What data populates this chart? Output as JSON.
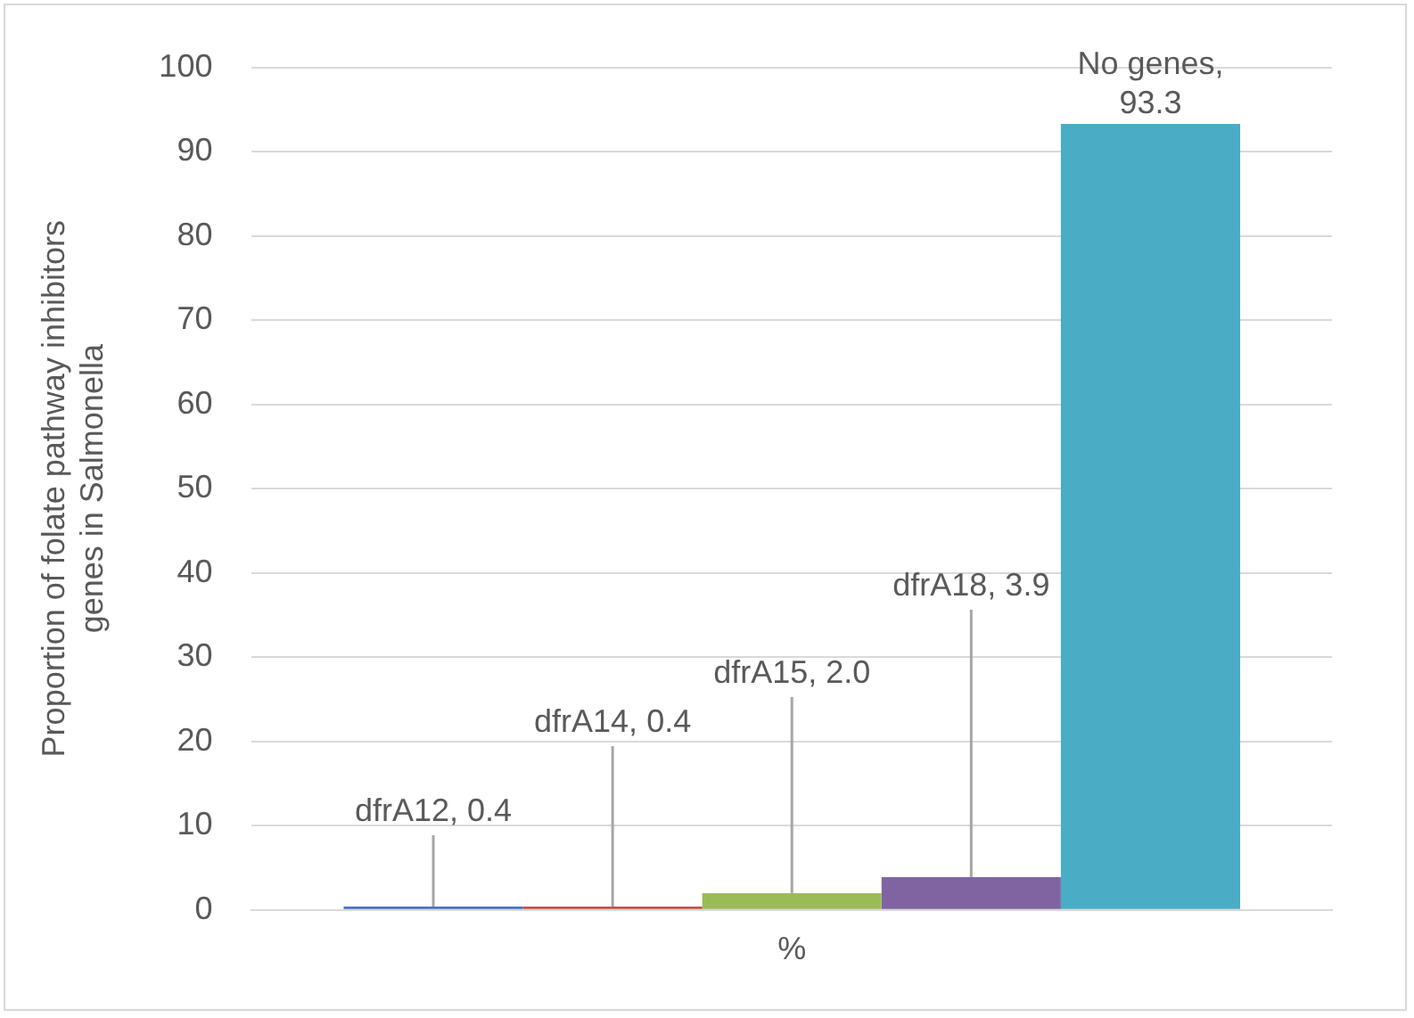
{
  "chart_data": {
    "type": "bar",
    "ylabel": "Proportion of folate pathway inhibitors genes in Salmonella",
    "categories": [
      "%"
    ],
    "series": [
      {
        "name": "dfrA12,",
        "color": "#4472c4",
        "values": [
          0.4
        ],
        "value_labels": [
          "0.4"
        ]
      },
      {
        "name": "dfrA14,",
        "color": "#c0504d",
        "values": [
          0.4
        ],
        "value_labels": [
          "0.4"
        ]
      },
      {
        "name": "dfrA15,",
        "color": "#9bbb59",
        "values": [
          2.0
        ],
        "value_labels": [
          "2.0"
        ]
      },
      {
        "name": "dfrA18,",
        "color": "#8064a2",
        "values": [
          3.9
        ],
        "value_labels": [
          "3.9"
        ]
      },
      {
        "name": "No genes,",
        "color": "#4bacc6",
        "values": [
          93.3
        ],
        "value_labels": [
          "93.3"
        ]
      }
    ],
    "ylim": [
      0,
      100
    ],
    "yticks": [
      0,
      10,
      20,
      30,
      40,
      50,
      60,
      70,
      80,
      90,
      100
    ],
    "grid": "y",
    "legend": false
  }
}
